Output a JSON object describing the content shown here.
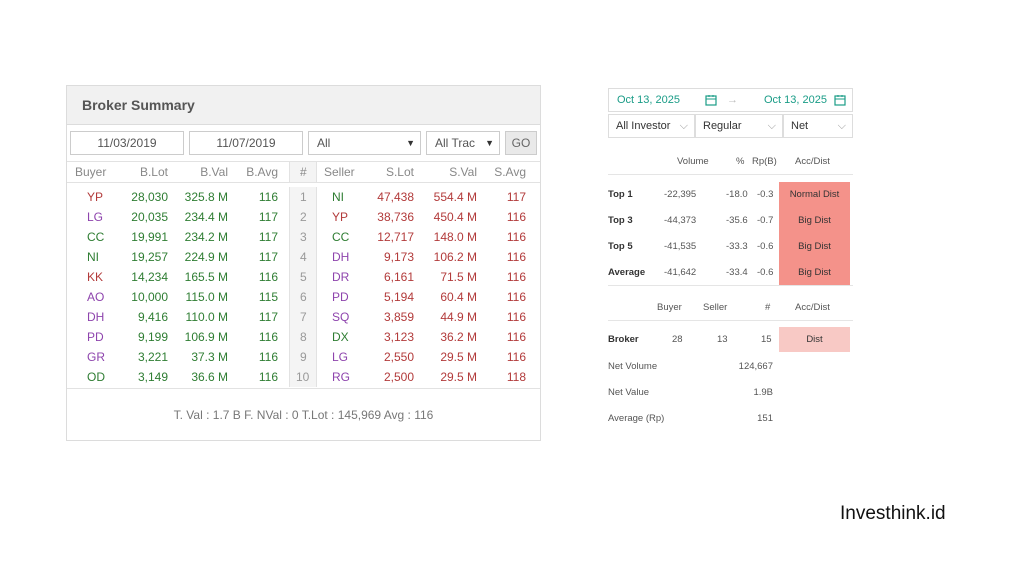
{
  "broker_summary": {
    "title": "Broker Summary",
    "filters": {
      "date_from": "11/03/2019",
      "date_to": "11/07/2019",
      "market": "All",
      "trade_type": "All Trac",
      "go_label": "GO"
    },
    "columns": [
      "Buyer",
      "B.Lot",
      "B.Val",
      "B.Avg",
      "#",
      "Seller",
      "S.Lot",
      "S.Val",
      "S.Avg"
    ],
    "rows": [
      {
        "buyer": "YP",
        "blot": "28,030",
        "bval": "325.8 M",
        "bavg": "116",
        "num": "1",
        "seller": "NI",
        "slot": "47,438",
        "sval": "554.4 M",
        "savg": "117",
        "bcolor": "#b23a3a",
        "scolor": "#2e7d32"
      },
      {
        "buyer": "LG",
        "blot": "20,035",
        "bval": "234.4 M",
        "bavg": "117",
        "num": "2",
        "seller": "YP",
        "slot": "38,736",
        "sval": "450.4 M",
        "savg": "116",
        "bcolor": "#8e44ad",
        "scolor": "#b23a3a"
      },
      {
        "buyer": "CC",
        "blot": "19,991",
        "bval": "234.2 M",
        "bavg": "117",
        "num": "3",
        "seller": "CC",
        "slot": "12,717",
        "sval": "148.0 M",
        "savg": "116",
        "bcolor": "#2e7d32",
        "scolor": "#2e7d32"
      },
      {
        "buyer": "NI",
        "blot": "19,257",
        "bval": "224.9 M",
        "bavg": "117",
        "num": "4",
        "seller": "DH",
        "slot": "9,173",
        "sval": "106.2 M",
        "savg": "116",
        "bcolor": "#2e7d32",
        "scolor": "#8e44ad"
      },
      {
        "buyer": "KK",
        "blot": "14,234",
        "bval": "165.5 M",
        "bavg": "116",
        "num": "5",
        "seller": "DR",
        "slot": "6,161",
        "sval": "71.5 M",
        "savg": "116",
        "bcolor": "#b23a3a",
        "scolor": "#8e44ad"
      },
      {
        "buyer": "AO",
        "blot": "10,000",
        "bval": "115.0 M",
        "bavg": "115",
        "num": "6",
        "seller": "PD",
        "slot": "5,194",
        "sval": "60.4 M",
        "savg": "116",
        "bcolor": "#8e44ad",
        "scolor": "#8e44ad"
      },
      {
        "buyer": "DH",
        "blot": "9,416",
        "bval": "110.0 M",
        "bavg": "117",
        "num": "7",
        "seller": "SQ",
        "slot": "3,859",
        "sval": "44.9 M",
        "savg": "116",
        "bcolor": "#8e44ad",
        "scolor": "#8e44ad"
      },
      {
        "buyer": "PD",
        "blot": "9,199",
        "bval": "106.9 M",
        "bavg": "116",
        "num": "8",
        "seller": "DX",
        "slot": "3,123",
        "sval": "36.2 M",
        "savg": "116",
        "bcolor": "#8e44ad",
        "scolor": "#2e7d32"
      },
      {
        "buyer": "GR",
        "blot": "3,221",
        "bval": "37.3 M",
        "bavg": "116",
        "num": "9",
        "seller": "LG",
        "slot": "2,550",
        "sval": "29.5 M",
        "savg": "116",
        "bcolor": "#8e44ad",
        "scolor": "#8e44ad"
      },
      {
        "buyer": "OD",
        "blot": "3,149",
        "bval": "36.6 M",
        "bavg": "116",
        "num": "10",
        "seller": "RG",
        "slot": "2,500",
        "sval": "29.5 M",
        "savg": "118",
        "bcolor": "#2e7d32",
        "scolor": "#8e44ad"
      }
    ],
    "footer": "T. Val : 1.7 B    F. NVal : 0    T.Lot : 145,969    Avg : 116"
  },
  "summary_panel": {
    "date_from": "Oct 13, 2025",
    "date_to": "Oct 13, 2025",
    "arrow": "→",
    "investor": "All Investor",
    "board": "Regular",
    "mode": "Net",
    "top_headers": {
      "volume": "Volume",
      "pct": "%",
      "rp": "Rp(B)",
      "acc": "Acc/Dist"
    },
    "top_rows": [
      {
        "label": "Top 1",
        "volume": "-22,395",
        "pct": "-18.0",
        "rp": "-0.3",
        "acc": "Normal Dist"
      },
      {
        "label": "Top 3",
        "volume": "-44,373",
        "pct": "-35.6",
        "rp": "-0.7",
        "acc": "Big Dist"
      },
      {
        "label": "Top 5",
        "volume": "-41,535",
        "pct": "-33.3",
        "rp": "-0.6",
        "acc": "Big Dist"
      },
      {
        "label": "Average",
        "volume": "-41,642",
        "pct": "-33.4",
        "rp": "-0.6",
        "acc": "Big Dist"
      }
    ],
    "broker_headers": {
      "buyer": "Buyer",
      "seller": "Seller",
      "num": "#",
      "acc": "Acc/Dist"
    },
    "broker_row": {
      "label": "Broker",
      "buyer": "28",
      "seller": "13",
      "num": "15",
      "acc": "Dist"
    },
    "stats": [
      {
        "label": "Net Volume",
        "value": "124,667"
      },
      {
        "label": "Net Value",
        "value": "1.9B"
      },
      {
        "label": "Average (Rp)",
        "value": "151"
      }
    ],
    "colors": {
      "accent": "#1a9c87",
      "big_dist": "#f4928a",
      "dist": "#f8c9c5"
    }
  },
  "brand": "Investhink.id"
}
